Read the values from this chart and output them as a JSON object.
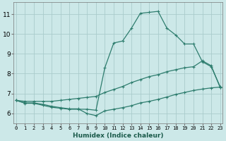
{
  "xlabel": "Humidex (Indice chaleur)",
  "background_color": "#cce8e8",
  "grid_color": "#aacccc",
  "line_color": "#2e7d6e",
  "x_ticks": [
    0,
    1,
    2,
    3,
    4,
    5,
    6,
    7,
    8,
    9,
    10,
    11,
    12,
    13,
    14,
    15,
    16,
    17,
    18,
    19,
    20,
    21,
    22,
    23
  ],
  "y_ticks": [
    6,
    7,
    8,
    9,
    10,
    11
  ],
  "ylim": [
    5.5,
    11.6
  ],
  "xlim": [
    -0.3,
    23.3
  ],
  "curve1_x": [
    0,
    1,
    2,
    3,
    4,
    5,
    6,
    7,
    8,
    9,
    10,
    11,
    12,
    13,
    14,
    15,
    16,
    17,
    18,
    19,
    20,
    21,
    22,
    23
  ],
  "curve1_y": [
    6.65,
    6.5,
    6.5,
    6.4,
    6.3,
    6.25,
    6.2,
    6.2,
    6.2,
    6.15,
    8.3,
    9.55,
    9.65,
    10.3,
    11.05,
    11.1,
    11.15,
    10.3,
    9.95,
    9.5,
    9.5,
    8.6,
    8.35,
    7.35
  ],
  "curve2_x": [
    0,
    1,
    2,
    3,
    4,
    5,
    6,
    7,
    8,
    9,
    10,
    11,
    12,
    13,
    14,
    15,
    16,
    17,
    18,
    19,
    20,
    21,
    22,
    23
  ],
  "curve2_y": [
    6.65,
    6.6,
    6.6,
    6.6,
    6.6,
    6.65,
    6.7,
    6.75,
    6.8,
    6.85,
    7.05,
    7.2,
    7.35,
    7.55,
    7.7,
    7.85,
    7.95,
    8.1,
    8.2,
    8.3,
    8.35,
    8.65,
    8.4,
    7.3
  ],
  "curve3_x": [
    0,
    1,
    2,
    3,
    4,
    5,
    6,
    7,
    8,
    9,
    10,
    11,
    12,
    13,
    14,
    15,
    16,
    17,
    18,
    19,
    20,
    21,
    22,
    23
  ],
  "curve3_y": [
    6.65,
    6.52,
    6.52,
    6.45,
    6.35,
    6.28,
    6.22,
    6.22,
    5.98,
    5.88,
    6.12,
    6.2,
    6.28,
    6.38,
    6.52,
    6.6,
    6.7,
    6.82,
    6.95,
    7.05,
    7.15,
    7.22,
    7.28,
    7.32
  ]
}
